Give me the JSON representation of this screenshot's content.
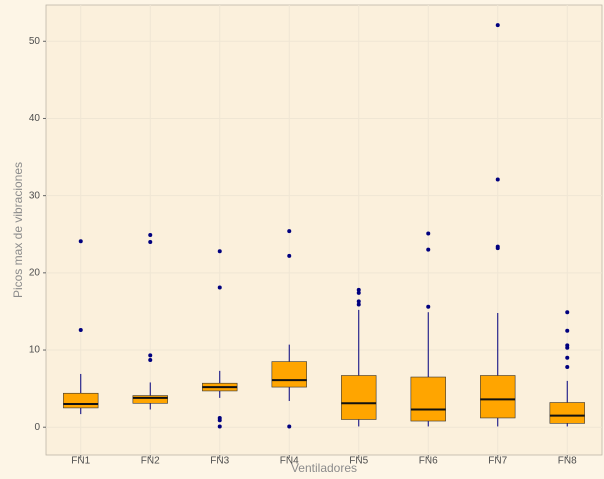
{
  "chart_data": {
    "type": "box",
    "x_label": "Ventiladores",
    "y_label": "Picos max de vibraciones",
    "fill": "#ffa500",
    "stroke": "#00007f",
    "grid": true,
    "ylim": [
      -3.6,
      54.7
    ],
    "yticks": [
      0,
      10,
      20,
      30,
      40,
      50
    ],
    "boxes": [
      {
        "category": "FN1",
        "whisker_low": 1.7,
        "q1": 2.5,
        "median": 3.0,
        "q3": 4.4,
        "whisker_high": 6.9,
        "outliers": [
          12.6,
          24.1
        ]
      },
      {
        "category": "FN2",
        "whisker_low": 2.3,
        "q1": 3.1,
        "median": 3.8,
        "q3": 4.1,
        "whisker_high": 5.8,
        "outliers": [
          8.7,
          9.3,
          24.0,
          24.9
        ]
      },
      {
        "category": "FN3",
        "whisker_low": 3.8,
        "q1": 4.7,
        "median": 5.2,
        "q3": 5.7,
        "whisker_high": 7.3,
        "outliers": [
          0.1,
          0.9,
          1.2,
          18.1,
          22.8
        ]
      },
      {
        "category": "FN4",
        "whisker_low": 3.4,
        "q1": 5.2,
        "median": 6.1,
        "q3": 8.5,
        "whisker_high": 10.7,
        "outliers": [
          0.1,
          22.2,
          25.4
        ]
      },
      {
        "category": "FN5",
        "whisker_low": 0.1,
        "q1": 1.0,
        "median": 3.1,
        "q3": 6.7,
        "whisker_high": 15.2,
        "outliers": [
          15.9,
          16.3,
          17.4,
          17.8
        ]
      },
      {
        "category": "FN6",
        "whisker_low": 0.1,
        "q1": 0.8,
        "median": 2.3,
        "q3": 6.5,
        "whisker_high": 14.9,
        "outliers": [
          15.6,
          23.0,
          25.1
        ]
      },
      {
        "category": "FN7",
        "whisker_low": 0.1,
        "q1": 1.2,
        "median": 3.6,
        "q3": 6.7,
        "whisker_high": 14.8,
        "outliers": [
          23.2,
          23.4,
          32.1,
          52.1
        ]
      },
      {
        "category": "FN8",
        "whisker_low": 0.1,
        "q1": 0.5,
        "median": 1.5,
        "q3": 3.2,
        "whisker_high": 6.0,
        "outliers": [
          7.8,
          9.0,
          10.3,
          10.6,
          12.5,
          14.9
        ]
      }
    ]
  }
}
